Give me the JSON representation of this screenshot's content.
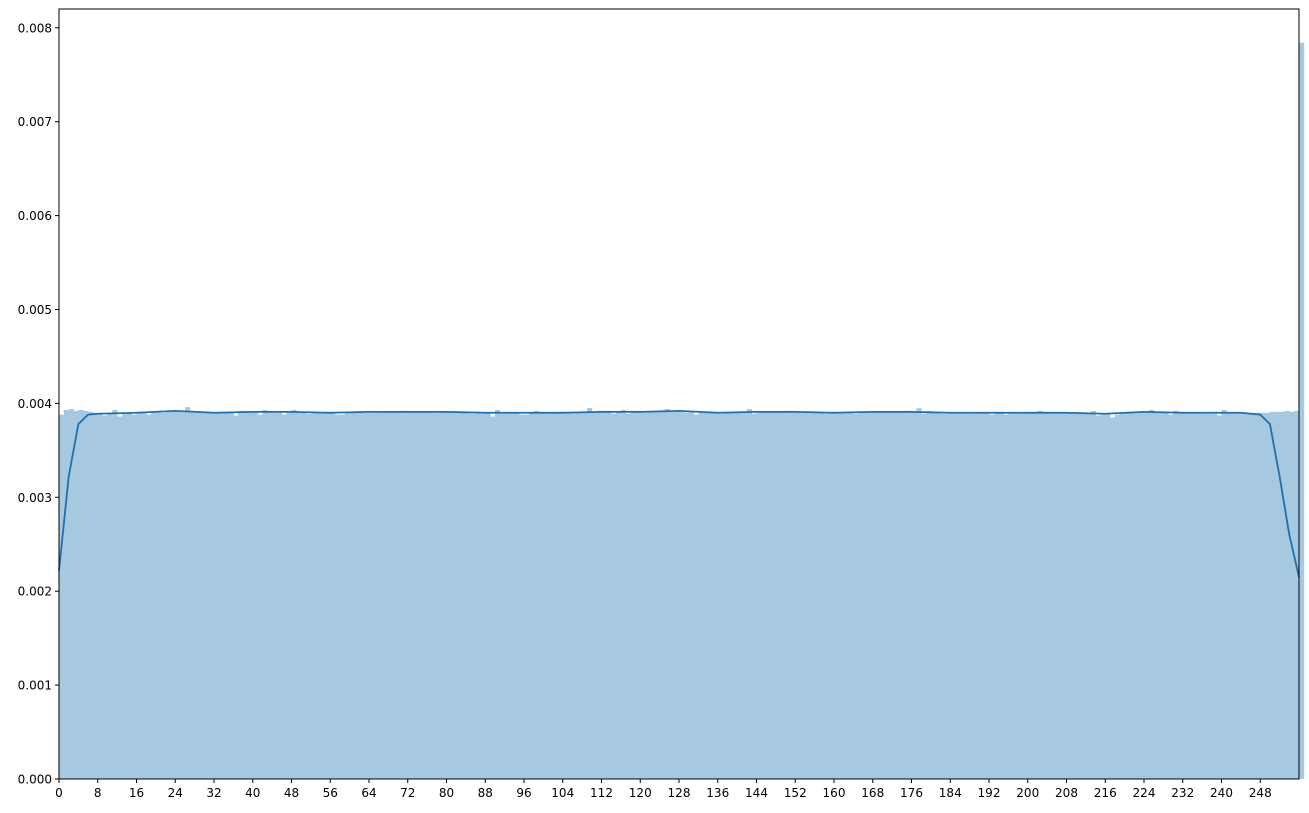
{
  "chart_data": {
    "type": "bar",
    "overlay": "line",
    "x_range": [
      0,
      256
    ],
    "ylim": [
      0,
      0.0082
    ],
    "x_ticks": [
      0,
      8,
      16,
      24,
      32,
      40,
      48,
      56,
      64,
      72,
      80,
      88,
      96,
      104,
      112,
      120,
      128,
      136,
      144,
      152,
      160,
      168,
      176,
      184,
      192,
      200,
      208,
      216,
      224,
      232,
      240,
      248
    ],
    "y_ticks": [
      "0.000",
      "0.001",
      "0.002",
      "0.003",
      "0.004",
      "0.005",
      "0.006",
      "0.007",
      "0.008"
    ],
    "bar_color": "#a6c8e0",
    "line_color": "#1f6fae",
    "histogram": {
      "bin_width": 1,
      "start": 0,
      "values": [
        0.00388,
        0.00393,
        0.00394,
        0.00392,
        0.00393,
        0.00392,
        0.00391,
        0.0039,
        0.00388,
        0.00387,
        0.0039,
        0.00393,
        0.00386,
        0.00389,
        0.0039,
        0.00388,
        0.00391,
        0.00391,
        0.00388,
        0.00391,
        0.00391,
        0.0039,
        0.00392,
        0.00391,
        0.00391,
        0.00392,
        0.00396,
        0.00392,
        0.00391,
        0.0039,
        0.0039,
        0.0039,
        0.0039,
        0.0039,
        0.0039,
        0.00391,
        0.00387,
        0.00392,
        0.00392,
        0.00391,
        0.00391,
        0.00388,
        0.00393,
        0.00391,
        0.0039,
        0.00391,
        0.00388,
        0.0039,
        0.00393,
        0.00391,
        0.00391,
        0.00389,
        0.0039,
        0.0039,
        0.0039,
        0.00391,
        0.00391,
        0.00388,
        0.00388,
        0.0039,
        0.0039,
        0.00391,
        0.00391,
        0.0039,
        0.0039,
        0.0039,
        0.00391,
        0.00391,
        0.00391,
        0.00391,
        0.00391,
        0.00392,
        0.00391,
        0.00391,
        0.00391,
        0.00391,
        0.00391,
        0.0039,
        0.00391,
        0.00391,
        0.00391,
        0.00392,
        0.00391,
        0.0039,
        0.0039,
        0.00389,
        0.00391,
        0.00389,
        0.0039,
        0.00386,
        0.00393,
        0.00389,
        0.0039,
        0.0039,
        0.0039,
        0.00388,
        0.00388,
        0.0039,
        0.00392,
        0.00391,
        0.0039,
        0.0039,
        0.0039,
        0.00391,
        0.00391,
        0.0039,
        0.00391,
        0.00391,
        0.0039,
        0.00395,
        0.00391,
        0.00392,
        0.00392,
        0.00392,
        0.00389,
        0.00392,
        0.00393,
        0.00389,
        0.00392,
        0.00392,
        0.00391,
        0.00391,
        0.00391,
        0.00391,
        0.00392,
        0.00394,
        0.00392,
        0.00391,
        0.00391,
        0.0039,
        0.00391,
        0.00388,
        0.0039,
        0.0039,
        0.0039,
        0.00391,
        0.00389,
        0.00391,
        0.0039,
        0.00391,
        0.00391,
        0.00391,
        0.00394,
        0.00389,
        0.00391,
        0.00391,
        0.00391,
        0.00391,
        0.00391,
        0.00391,
        0.00392,
        0.00392,
        0.00391,
        0.00391,
        0.0039,
        0.0039,
        0.00391,
        0.0039,
        0.00389,
        0.0039,
        0.00391,
        0.0039,
        0.00391,
        0.00391,
        0.00389,
        0.00391,
        0.00391,
        0.00391,
        0.00391,
        0.00391,
        0.00391,
        0.00391,
        0.00391,
        0.00391,
        0.00392,
        0.00392,
        0.00391,
        0.00395,
        0.00389,
        0.00392,
        0.0039,
        0.0039,
        0.00389,
        0.00389,
        0.0039,
        0.00389,
        0.0039,
        0.00389,
        0.00389,
        0.0039,
        0.0039,
        0.0039,
        0.00388,
        0.0039,
        0.0039,
        0.00388,
        0.0039,
        0.0039,
        0.00389,
        0.0039,
        0.00391,
        0.00391,
        0.00392,
        0.00391,
        0.0039,
        0.0039,
        0.0039,
        0.0039,
        0.0039,
        0.0039,
        0.00389,
        0.00389,
        0.00389,
        0.00392,
        0.00387,
        0.00388,
        0.0039,
        0.00385,
        0.00388,
        0.00389,
        0.00391,
        0.00391,
        0.00391,
        0.00391,
        0.00391,
        0.00393,
        0.00391,
        0.00391,
        0.0039,
        0.00388,
        0.00392,
        0.0039,
        0.0039,
        0.0039,
        0.0039,
        0.0039,
        0.00389,
        0.00389,
        0.00389,
        0.00387,
        0.00393,
        0.0039,
        0.0039,
        0.0039,
        0.0039,
        0.0039,
        0.0039,
        0.0039,
        0.0039,
        0.0039,
        0.00391,
        0.00391,
        0.00391,
        0.00392,
        0.00391,
        0.00392,
        0.00784
      ]
    },
    "kde": {
      "x": [
        0,
        2,
        4,
        6,
        8,
        16,
        24,
        32,
        40,
        48,
        56,
        64,
        72,
        80,
        88,
        96,
        104,
        112,
        120,
        128,
        136,
        144,
        152,
        160,
        168,
        176,
        184,
        192,
        200,
        208,
        216,
        224,
        232,
        240,
        244,
        248,
        250,
        252,
        254,
        256
      ],
      "y": [
        0.00222,
        0.00322,
        0.00378,
        0.00388,
        0.00389,
        0.0039,
        0.00392,
        0.0039,
        0.00391,
        0.00391,
        0.0039,
        0.00391,
        0.00391,
        0.00391,
        0.0039,
        0.0039,
        0.0039,
        0.00391,
        0.00391,
        0.00392,
        0.0039,
        0.00391,
        0.00391,
        0.0039,
        0.00391,
        0.00391,
        0.0039,
        0.0039,
        0.0039,
        0.0039,
        0.00389,
        0.00391,
        0.0039,
        0.0039,
        0.0039,
        0.00388,
        0.00378,
        0.00322,
        0.0026,
        0.00215
      ]
    }
  }
}
